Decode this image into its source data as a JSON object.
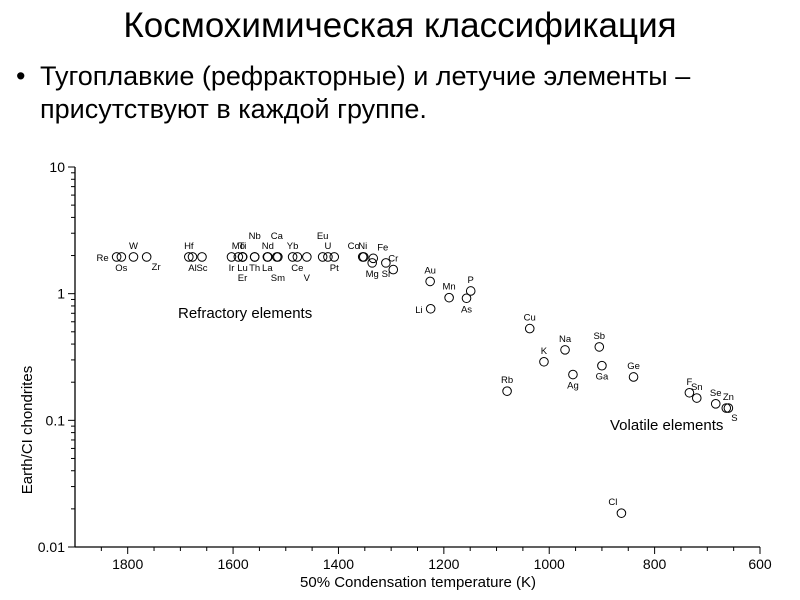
{
  "slide": {
    "title": "Космохимическая классификация",
    "bullet_marker": "•",
    "bullet_text": "Тугоплавкие (рефракторные) и летучие элементы – присутствуют в каждой группе."
  },
  "chart_data": {
    "type": "scatter",
    "xlabel": "50% Condensation temperature (K)",
    "ylabel": "Earth/CI chondrites",
    "xlim": [
      1900,
      600
    ],
    "ylim": [
      0.01,
      10
    ],
    "yscale": "log",
    "x_ticks": [
      1800,
      1600,
      1400,
      1200,
      1000,
      800,
      600
    ],
    "y_ticks": [
      {
        "value": 10,
        "label": "10"
      },
      {
        "value": 1,
        "label": "1"
      },
      {
        "value": 0.1,
        "label": "0.1"
      },
      {
        "value": 0.01,
        "label": "0.01"
      }
    ],
    "grid": false,
    "annotations": [
      "Refractory elements",
      "Volatile elements"
    ],
    "points": [
      {
        "label": "Re",
        "x": 1821,
        "y": 1.95,
        "lpos": "left"
      },
      {
        "label": "Os",
        "x": 1812,
        "y": 1.95,
        "lpos": "below"
      },
      {
        "label": "W",
        "x": 1789,
        "y": 1.95,
        "lpos": "above"
      },
      {
        "label": "Zr",
        "x": 1764,
        "y": 1.95,
        "lpos": "belowright"
      },
      {
        "label": "Hf",
        "x": 1684,
        "y": 1.95,
        "lpos": "above"
      },
      {
        "label": "Al",
        "x": 1677,
        "y": 1.95,
        "lpos": "below"
      },
      {
        "label": "Sc",
        "x": 1659,
        "y": 1.95,
        "lpos": "below"
      },
      {
        "label": "Mo",
        "x": 1590,
        "y": 1.95,
        "lpos": "above"
      },
      {
        "label": "Ir",
        "x": 1603,
        "y": 1.95,
        "lpos": "below"
      },
      {
        "label": "Lu",
        "x": 1582,
        "y": 1.95,
        "lpos": "below"
      },
      {
        "label": "Nb",
        "x": 1559,
        "y": 1.95,
        "lpos": "above2"
      },
      {
        "label": "Ti",
        "x": 1582,
        "y": 1.95,
        "lpos": "above"
      },
      {
        "label": "Th",
        "x": 1559,
        "y": 1.95,
        "lpos": "below"
      },
      {
        "label": "Er",
        "x": 1582,
        "y": 1.95,
        "lpos": "below2"
      },
      {
        "label": "Ca",
        "x": 1517,
        "y": 1.95,
        "lpos": "above2"
      },
      {
        "label": "Nd",
        "x": 1534,
        "y": 1.95,
        "lpos": "above"
      },
      {
        "label": "La",
        "x": 1535,
        "y": 1.95,
        "lpos": "below"
      },
      {
        "label": "Sm",
        "x": 1515,
        "y": 1.95,
        "lpos": "below2"
      },
      {
        "label": "Ce",
        "x": 1478,
        "y": 1.95,
        "lpos": "below"
      },
      {
        "label": "Eu",
        "x": 1430,
        "y": 1.95,
        "lpos": "above2"
      },
      {
        "label": "Yb",
        "x": 1487,
        "y": 1.95,
        "lpos": "above"
      },
      {
        "label": "V",
        "x": 1460,
        "y": 1.95,
        "lpos": "below2"
      },
      {
        "label": "U",
        "x": 1420,
        "y": 1.95,
        "lpos": "above"
      },
      {
        "label": "Pt",
        "x": 1408,
        "y": 1.95,
        "lpos": "below"
      },
      {
        "label": "Ni",
        "x": 1354,
        "y": 1.95,
        "lpos": "above"
      },
      {
        "label": "Co",
        "x": 1352,
        "y": 1.95,
        "lpos": "aboveleft"
      },
      {
        "label": "Fe",
        "x": 1334,
        "y": 1.9,
        "lpos": "aboveright"
      },
      {
        "label": "Mg",
        "x": 1336,
        "y": 1.75,
        "lpos": "below"
      },
      {
        "label": "Si",
        "x": 1310,
        "y": 1.75,
        "lpos": "below"
      },
      {
        "label": "Cr",
        "x": 1296,
        "y": 1.55,
        "lpos": "above"
      },
      {
        "label": "Au",
        "x": 1226,
        "y": 1.25,
        "lpos": "above"
      },
      {
        "label": "Mn",
        "x": 1190,
        "y": 0.93,
        "lpos": "above"
      },
      {
        "label": "P",
        "x": 1149,
        "y": 1.05,
        "lpos": "above"
      },
      {
        "label": "Li",
        "x": 1225,
        "y": 0.76,
        "lpos": "left"
      },
      {
        "label": "As",
        "x": 1157,
        "y": 0.92,
        "lpos": "below"
      },
      {
        "label": "Cu",
        "x": 1037,
        "y": 0.53,
        "lpos": "above"
      },
      {
        "label": "Na",
        "x": 970,
        "y": 0.36,
        "lpos": "above"
      },
      {
        "label": "Sb",
        "x": 905,
        "y": 0.38,
        "lpos": "above"
      },
      {
        "label": "K",
        "x": 1010,
        "y": 0.29,
        "lpos": "above"
      },
      {
        "label": "Ag",
        "x": 955,
        "y": 0.23,
        "lpos": "below"
      },
      {
        "label": "Ga",
        "x": 900,
        "y": 0.27,
        "lpos": "below"
      },
      {
        "label": "Ge",
        "x": 840,
        "y": 0.22,
        "lpos": "above"
      },
      {
        "label": "Rb",
        "x": 1080,
        "y": 0.17,
        "lpos": "above"
      },
      {
        "label": "F",
        "x": 734,
        "y": 0.165,
        "lpos": "above"
      },
      {
        "label": "Sn",
        "x": 720,
        "y": 0.15,
        "lpos": "above"
      },
      {
        "label": "Se",
        "x": 684,
        "y": 0.135,
        "lpos": "above"
      },
      {
        "label": "Zn",
        "x": 660,
        "y": 0.125,
        "lpos": "above"
      },
      {
        "label": "S",
        "x": 664,
        "y": 0.125,
        "lpos": "belowright"
      },
      {
        "label": "Cl",
        "x": 863,
        "y": 0.0185,
        "lpos": "aboveleft"
      }
    ]
  }
}
